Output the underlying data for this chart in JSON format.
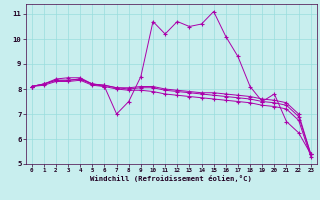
{
  "xlabel": "Windchill (Refroidissement éolien,°C)",
  "bg_color": "#c8eeee",
  "line_color": "#aa00aa",
  "grid_color": "#99dddd",
  "xlim_min": -0.5,
  "xlim_max": 23.5,
  "ylim_min": 5.0,
  "ylim_max": 11.4,
  "yticks": [
    5,
    6,
    7,
    8,
    9,
    10,
    11
  ],
  "xticks": [
    0,
    1,
    2,
    3,
    4,
    5,
    6,
    7,
    8,
    9,
    10,
    11,
    12,
    13,
    14,
    15,
    16,
    17,
    18,
    19,
    20,
    21,
    22,
    23
  ],
  "curves": [
    [
      8.1,
      8.2,
      8.4,
      8.45,
      8.45,
      8.2,
      8.1,
      7.0,
      7.5,
      8.5,
      10.7,
      10.2,
      10.7,
      10.5,
      10.6,
      11.1,
      10.1,
      9.3,
      8.1,
      7.5,
      7.8,
      6.7,
      6.25,
      5.4
    ],
    [
      8.1,
      8.2,
      8.35,
      8.35,
      8.4,
      8.2,
      8.15,
      8.05,
      8.05,
      8.1,
      8.1,
      8.0,
      7.95,
      7.9,
      7.85,
      7.85,
      7.8,
      7.75,
      7.7,
      7.6,
      7.55,
      7.45,
      7.0,
      5.4
    ],
    [
      8.1,
      8.2,
      8.35,
      8.35,
      8.4,
      8.2,
      8.15,
      8.05,
      8.0,
      8.05,
      8.05,
      7.95,
      7.9,
      7.85,
      7.8,
      7.75,
      7.7,
      7.65,
      7.6,
      7.5,
      7.45,
      7.35,
      6.9,
      5.4
    ],
    [
      8.1,
      8.15,
      8.3,
      8.3,
      8.35,
      8.15,
      8.1,
      8.0,
      7.95,
      7.95,
      7.9,
      7.8,
      7.75,
      7.7,
      7.65,
      7.6,
      7.55,
      7.5,
      7.45,
      7.35,
      7.3,
      7.2,
      6.75,
      5.3
    ]
  ]
}
